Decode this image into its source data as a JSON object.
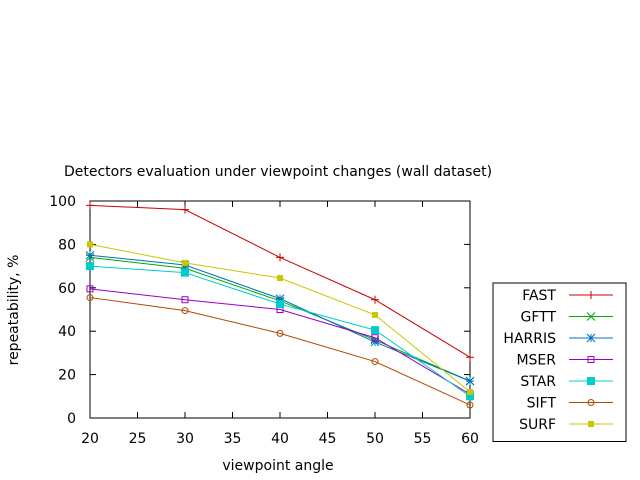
{
  "chart_data": {
    "type": "line",
    "title": "Detectors evaluation under viewpoint changes (wall dataset)",
    "xlabel": "viewpoint angle",
    "ylabel": "repeatability, %",
    "xlim": [
      20,
      60
    ],
    "ylim": [
      0,
      100
    ],
    "xticks": [
      20,
      25,
      30,
      35,
      40,
      45,
      50,
      55,
      60
    ],
    "yticks": [
      0,
      20,
      40,
      60,
      80,
      100
    ],
    "x": [
      20,
      30,
      40,
      50,
      60
    ],
    "grid": false,
    "legend_position": "outside-right-bottom",
    "series": [
      {
        "name": "FAST",
        "color": "#cc0000",
        "marker": "plus",
        "values": [
          98,
          96,
          74,
          54.5,
          28
        ]
      },
      {
        "name": "GFTT",
        "color": "#00aa00",
        "marker": "cross",
        "values": [
          74,
          69,
          54,
          36,
          17
        ]
      },
      {
        "name": "HARRIS",
        "color": "#0070c0",
        "marker": "star",
        "values": [
          75,
          70.5,
          55,
          35,
          17
        ]
      },
      {
        "name": "MSER",
        "color": "#9900cc",
        "marker": "square-open",
        "values": [
          59.5,
          54.5,
          50,
          37,
          11
        ]
      },
      {
        "name": "STAR",
        "color": "#00cccc",
        "marker": "square-filled",
        "values": [
          70,
          67,
          52.5,
          40.5,
          10
        ]
      },
      {
        "name": "SIFT",
        "color": "#b34700",
        "marker": "circle-open",
        "values": [
          55.5,
          49.5,
          39,
          26,
          6
        ]
      },
      {
        "name": "SURF",
        "color": "#c8c800",
        "marker": "square-small",
        "values": [
          80,
          71.5,
          64.5,
          47.5,
          12
        ]
      }
    ]
  }
}
